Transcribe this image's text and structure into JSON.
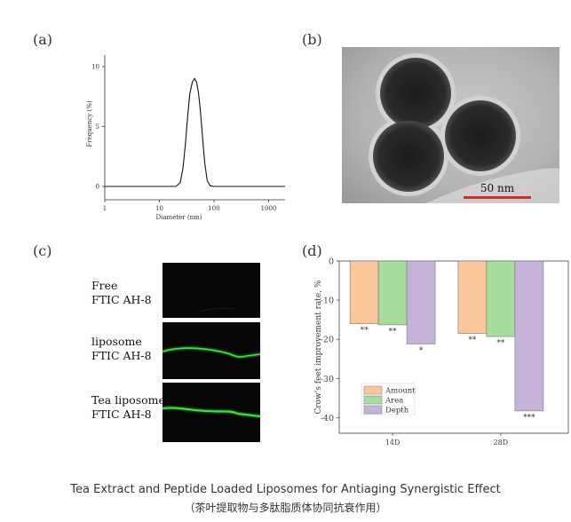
{
  "panels": {
    "a": "(a)",
    "b": "(b)",
    "c": "(c)",
    "d": "(d)"
  },
  "panel_a": {
    "type": "line",
    "xlabel": "Diameter (nm)",
    "ylabel": "Frequency (%)",
    "xscale": "log",
    "xticks": [
      "1",
      "10",
      "100",
      "1000"
    ],
    "yticks": [
      "0",
      "5",
      "10"
    ],
    "xlim": [
      1,
      2000
    ],
    "ylim": [
      0,
      10
    ],
    "x": [
      1,
      10,
      20,
      24,
      27,
      30,
      33,
      36,
      40,
      44,
      48,
      52,
      56,
      60,
      64,
      68,
      75,
      85,
      100,
      1000,
      2000
    ],
    "y": [
      0,
      0,
      0,
      0.3,
      1.5,
      3.6,
      5.9,
      7.7,
      8.7,
      9.0,
      8.7,
      7.8,
      6.4,
      4.8,
      3.2,
      1.9,
      0.5,
      0.05,
      0,
      0,
      0
    ]
  },
  "panel_b": {
    "scale_label": "50 nm",
    "scale_color": "#d42a2a"
  },
  "panel_c": {
    "rows": [
      {
        "line1": "Free",
        "line2": "FTIC AH-8"
      },
      {
        "line1": "liposome",
        "line2": "FTIC AH-8"
      },
      {
        "line1": "Tea liposome",
        "line2": "FTIC AH-8"
      }
    ],
    "fluorescence_color": "#38e838"
  },
  "chart_data": {
    "type": "bar",
    "categories": [
      "14D",
      "28D"
    ],
    "ylabel": "Crow's feet improvement rate, %",
    "ylim": [
      -44,
      0
    ],
    "yticks": [
      "0",
      "-10",
      "-20",
      "-30",
      "-40"
    ],
    "legend_position": "bottom-left",
    "series": [
      {
        "name": "Amount",
        "values": [
          -16.0,
          -18.5
        ],
        "color": "#f9c79a",
        "sig": [
          "**",
          "**"
        ]
      },
      {
        "name": "Area",
        "values": [
          -16.3,
          -19.3
        ],
        "color": "#a6dc9c",
        "sig": [
          "**",
          "**"
        ]
      },
      {
        "name": "Depth",
        "values": [
          -21.2,
          -38.3
        ],
        "color": "#c6b3da",
        "sig": [
          "*",
          "***"
        ]
      }
    ]
  },
  "caption": {
    "line1": "Tea Extract and Peptide Loaded Liposomes for Antiaging Synergistic Effect",
    "line2": "（茶叶提取物与多肽脂质体协同抗衰作用）"
  }
}
